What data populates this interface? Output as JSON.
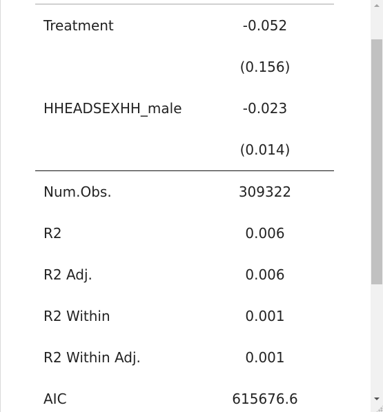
{
  "table": {
    "coefficient_rows": [
      {
        "label": "Treatment",
        "value": "-0.052"
      },
      {
        "label": "",
        "value": "(0.156)"
      },
      {
        "label": "HHEADSEXHH_male",
        "value": "-0.023"
      },
      {
        "label": "",
        "value": "(0.014)"
      }
    ],
    "stat_rows": [
      {
        "label": "Num.Obs.",
        "value": "309322"
      },
      {
        "label": "R2",
        "value": "0.006"
      },
      {
        "label": "R2 Adj.",
        "value": "0.006"
      },
      {
        "label": "R2 Within",
        "value": "0.001"
      },
      {
        "label": "R2 Within Adj.",
        "value": "0.001"
      },
      {
        "label": "AIC",
        "value": "615676.6"
      }
    ]
  },
  "scrollbar": {
    "up_icon": "arrow-up-icon",
    "down_icon": "arrow-down-icon",
    "grip_icon": "resize-grip-icon"
  }
}
